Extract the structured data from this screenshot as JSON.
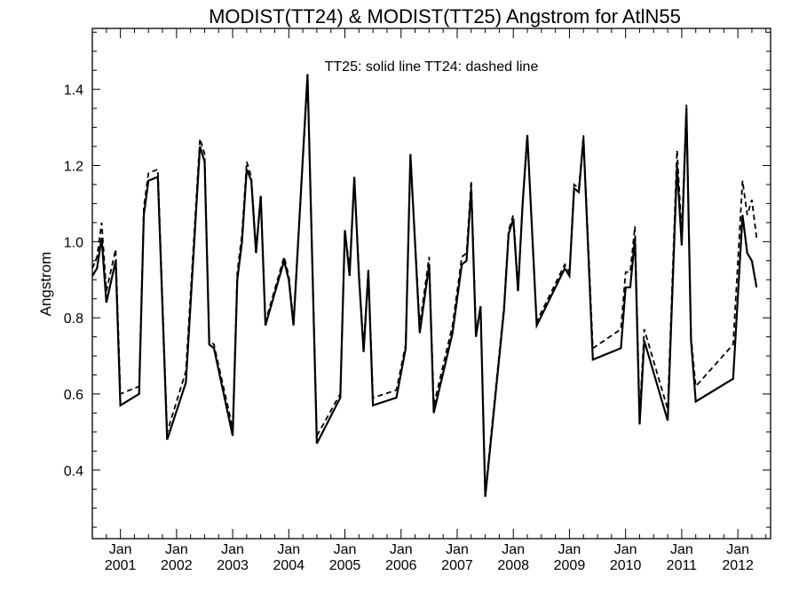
{
  "chart_data": {
    "type": "line",
    "title": "MODIST(TT24) & MODIST(TT25)  Angstrom for AtlN55",
    "ylabel": "Angstrom",
    "xlabel": "",
    "annotation": "TT25: solid line   TT24: dashed line",
    "ylim": [
      0.22,
      1.56
    ],
    "xlim": [
      "2000-07",
      "2012-08"
    ],
    "y_ticks": [
      0.4,
      0.6,
      0.8,
      1.0,
      1.2,
      1.4
    ],
    "y_tick_labels": [
      "0.4",
      "0.6",
      "0.8",
      "1.0",
      "1.2",
      "1.4"
    ],
    "x_ticks": [
      {
        "date": "2001-01",
        "line1": "Jan",
        "line2": "2001"
      },
      {
        "date": "2002-01",
        "line1": "Jan",
        "line2": "2002"
      },
      {
        "date": "2003-01",
        "line1": "Jan",
        "line2": "2003"
      },
      {
        "date": "2004-01",
        "line1": "Jan",
        "line2": "2004"
      },
      {
        "date": "2005-01",
        "line1": "Jan",
        "line2": "2005"
      },
      {
        "date": "2006-01",
        "line1": "Jan",
        "line2": "2006"
      },
      {
        "date": "2007-01",
        "line1": "Jan",
        "line2": "2007"
      },
      {
        "date": "2008-01",
        "line1": "Jan",
        "line2": "2008"
      },
      {
        "date": "2009-01",
        "line1": "Jan",
        "line2": "2009"
      },
      {
        "date": "2010-01",
        "line1": "Jan",
        "line2": "2010"
      },
      {
        "date": "2011-01",
        "line1": "Jan",
        "line2": "2011"
      },
      {
        "date": "2012-01",
        "line1": "Jan",
        "line2": "2012"
      }
    ],
    "grid": false,
    "series": [
      {
        "name": "TT25",
        "style": "solid",
        "color": "#000000",
        "points": [
          [
            "2000-07",
            0.91
          ],
          [
            "2000-08",
            0.93
          ],
          [
            "2000-09",
            1.01
          ],
          [
            "2000-10",
            0.84
          ],
          [
            "2000-12",
            0.95
          ],
          [
            "2001-01",
            0.57
          ],
          [
            "2001-05",
            0.6
          ],
          [
            "2001-06",
            1.07
          ],
          [
            "2001-07",
            1.16
          ],
          [
            "2001-09",
            1.17
          ],
          [
            "2001-11",
            0.48
          ],
          [
            "2002-03",
            0.63
          ],
          [
            "2002-06",
            1.25
          ],
          [
            "2002-07",
            1.21
          ],
          [
            "2002-08",
            0.73
          ],
          [
            "2002-09",
            0.72
          ],
          [
            "2003-01",
            0.49
          ],
          [
            "2003-02",
            0.9
          ],
          [
            "2003-03",
            1.0
          ],
          [
            "2003-04",
            1.19
          ],
          [
            "2003-05",
            1.16
          ],
          [
            "2003-06",
            0.97
          ],
          [
            "2003-07",
            1.12
          ],
          [
            "2003-08",
            0.78
          ],
          [
            "2003-12",
            0.95
          ],
          [
            "2004-01",
            0.9
          ],
          [
            "2004-02",
            0.78
          ],
          [
            "2004-05",
            1.44
          ],
          [
            "2004-07",
            0.47
          ],
          [
            "2004-12",
            0.59
          ],
          [
            "2005-01",
            1.03
          ],
          [
            "2005-02",
            0.91
          ],
          [
            "2005-03",
            1.17
          ],
          [
            "2005-04",
            0.91
          ],
          [
            "2005-05",
            0.71
          ],
          [
            "2005-06",
            0.92
          ],
          [
            "2005-07",
            0.57
          ],
          [
            "2005-12",
            0.59
          ],
          [
            "2006-02",
            0.72
          ],
          [
            "2006-03",
            1.23
          ],
          [
            "2006-05",
            0.76
          ],
          [
            "2006-07",
            0.94
          ],
          [
            "2006-08",
            0.55
          ],
          [
            "2006-12",
            0.76
          ],
          [
            "2007-02",
            0.94
          ],
          [
            "2007-03",
            0.95
          ],
          [
            "2007-04",
            1.14
          ],
          [
            "2007-05",
            0.75
          ],
          [
            "2007-06",
            0.83
          ],
          [
            "2007-07",
            0.33
          ],
          [
            "2007-11",
            0.82
          ],
          [
            "2007-12",
            1.02
          ],
          [
            "2008-01",
            1.06
          ],
          [
            "2008-02",
            0.87
          ],
          [
            "2008-03",
            1.1
          ],
          [
            "2008-04",
            1.28
          ],
          [
            "2008-06",
            0.78
          ],
          [
            "2008-12",
            0.93
          ],
          [
            "2009-01",
            0.91
          ],
          [
            "2009-02",
            1.14
          ],
          [
            "2009-03",
            1.13
          ],
          [
            "2009-04",
            1.27
          ],
          [
            "2009-06",
            0.69
          ],
          [
            "2009-12",
            0.72
          ],
          [
            "2010-01",
            0.88
          ],
          [
            "2010-02",
            0.88
          ],
          [
            "2010-03",
            1.01
          ],
          [
            "2010-04",
            0.52
          ],
          [
            "2010-05",
            0.74
          ],
          [
            "2010-10",
            0.53
          ],
          [
            "2010-12",
            1.2
          ],
          [
            "2011-01",
            0.99
          ],
          [
            "2011-02",
            1.35
          ],
          [
            "2011-03",
            0.74
          ],
          [
            "2011-04",
            0.58
          ],
          [
            "2011-12",
            0.64
          ],
          [
            "2012-02",
            1.07
          ],
          [
            "2012-03",
            0.97
          ],
          [
            "2012-04",
            0.95
          ],
          [
            "2012-05",
            0.88
          ]
        ]
      },
      {
        "name": "TT24",
        "style": "dashed",
        "color": "#000000",
        "points": [
          [
            "2000-07",
            0.93
          ],
          [
            "2000-08",
            0.96
          ],
          [
            "2000-09",
            1.05
          ],
          [
            "2000-10",
            0.87
          ],
          [
            "2000-12",
            0.98
          ],
          [
            "2001-01",
            0.6
          ],
          [
            "2001-05",
            0.62
          ],
          [
            "2001-06",
            1.09
          ],
          [
            "2001-07",
            1.18
          ],
          [
            "2001-09",
            1.19
          ],
          [
            "2001-11",
            0.5
          ],
          [
            "2002-03",
            0.66
          ],
          [
            "2002-06",
            1.27
          ],
          [
            "2002-07",
            1.23
          ],
          [
            "2002-08",
            0.74
          ],
          [
            "2002-09",
            0.73
          ],
          [
            "2003-01",
            0.51
          ],
          [
            "2003-02",
            0.92
          ],
          [
            "2003-03",
            1.02
          ],
          [
            "2003-04",
            1.21
          ],
          [
            "2003-05",
            1.17
          ],
          [
            "2003-06",
            0.98
          ],
          [
            "2003-07",
            1.12
          ],
          [
            "2003-08",
            0.79
          ],
          [
            "2003-12",
            0.96
          ],
          [
            "2004-01",
            0.91
          ],
          [
            "2004-02",
            0.79
          ],
          [
            "2004-05",
            1.43
          ],
          [
            "2004-07",
            0.49
          ],
          [
            "2004-12",
            0.6
          ],
          [
            "2005-01",
            1.03
          ],
          [
            "2005-02",
            0.93
          ],
          [
            "2005-03",
            1.17
          ],
          [
            "2005-04",
            0.92
          ],
          [
            "2005-05",
            0.72
          ],
          [
            "2005-06",
            0.93
          ],
          [
            "2005-07",
            0.59
          ],
          [
            "2005-12",
            0.61
          ],
          [
            "2006-02",
            0.73
          ],
          [
            "2006-03",
            1.22
          ],
          [
            "2006-05",
            0.78
          ],
          [
            "2006-07",
            0.96
          ],
          [
            "2006-08",
            0.57
          ],
          [
            "2006-12",
            0.78
          ],
          [
            "2007-02",
            0.96
          ],
          [
            "2007-03",
            0.97
          ],
          [
            "2007-04",
            1.16
          ],
          [
            "2007-05",
            0.76
          ],
          [
            "2007-06",
            0.83
          ],
          [
            "2007-07",
            0.34
          ],
          [
            "2007-11",
            0.83
          ],
          [
            "2007-12",
            1.03
          ],
          [
            "2008-01",
            1.07
          ],
          [
            "2008-02",
            0.88
          ],
          [
            "2008-03",
            1.1
          ],
          [
            "2008-04",
            1.27
          ],
          [
            "2008-06",
            0.79
          ],
          [
            "2008-12",
            0.94
          ],
          [
            "2009-01",
            0.92
          ],
          [
            "2009-02",
            1.15
          ],
          [
            "2009-03",
            1.14
          ],
          [
            "2009-04",
            1.28
          ],
          [
            "2009-06",
            0.72
          ],
          [
            "2009-12",
            0.77
          ],
          [
            "2010-01",
            0.92
          ],
          [
            "2010-02",
            0.92
          ],
          [
            "2010-03",
            1.04
          ],
          [
            "2010-04",
            0.54
          ],
          [
            "2010-05",
            0.77
          ],
          [
            "2010-10",
            0.56
          ],
          [
            "2010-12",
            1.24
          ],
          [
            "2011-01",
            1.02
          ],
          [
            "2011-02",
            1.36
          ],
          [
            "2011-03",
            0.75
          ],
          [
            "2011-04",
            0.62
          ],
          [
            "2011-12",
            0.73
          ],
          [
            "2012-02",
            1.16
          ],
          [
            "2012-03",
            1.07
          ],
          [
            "2012-04",
            1.11
          ],
          [
            "2012-05",
            1.01
          ]
        ]
      }
    ]
  }
}
